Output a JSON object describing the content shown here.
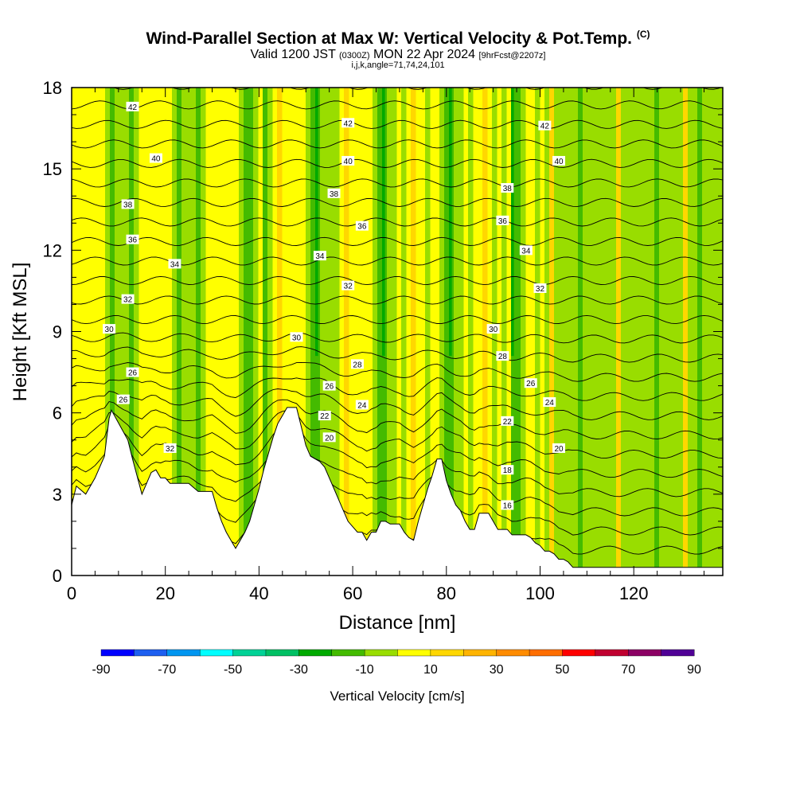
{
  "header": {
    "title": "Wind-Parallel Section at Max W: Vertical Velocity & Pot.Temp.",
    "title_mark": "(C)",
    "valid_prefix": "Valid 1200 JST",
    "valid_utc": "(0300Z)",
    "valid_date": "MON 22 Apr 2024",
    "forecast": "[9hrFcst@2207z]",
    "indices": "i,j,k,angle=71,74,24,101"
  },
  "chart_data": {
    "type": "heatmap",
    "xlabel": "Distance [nm]",
    "ylabel": "Height [Kft MSL]",
    "xlim": [
      0,
      139
    ],
    "ylim": [
      0,
      18
    ],
    "x_ticks": [
      0,
      20,
      40,
      60,
      80,
      100,
      120
    ],
    "y_ticks": [
      0,
      3,
      6,
      9,
      12,
      15,
      18
    ],
    "colorbar": {
      "title": "Vertical Velocity [cm/s]",
      "tick_labels": [
        "-90",
        "-70",
        "-50",
        "-30",
        "-10",
        "10",
        "30",
        "50",
        "70",
        "90"
      ],
      "colors": [
        "#0000ff",
        "#1e5ff0",
        "#0096f0",
        "#00ffff",
        "#00d296",
        "#00c064",
        "#00aa00",
        "#44bb00",
        "#99dd00",
        "#ffff00",
        "#ffd700",
        "#ffb400",
        "#ff8c00",
        "#ff6e00",
        "#ff0000",
        "#c00030",
        "#8c0064",
        "#500096"
      ]
    },
    "terrain_profile": {
      "x": [
        0,
        1,
        3,
        5,
        7,
        8,
        8.5,
        12,
        13,
        15,
        16,
        17,
        18,
        19,
        20,
        21,
        23,
        25,
        27,
        28,
        30,
        31,
        32,
        33,
        34,
        35,
        36,
        37,
        38,
        39,
        40,
        41,
        42,
        43,
        44,
        45,
        46,
        47,
        48,
        49,
        50,
        51,
        52,
        53,
        54,
        55,
        56,
        57,
        58,
        59,
        60,
        61,
        62,
        63,
        64,
        65,
        66,
        67,
        68,
        69,
        70,
        71,
        72,
        73,
        74,
        75,
        76,
        77,
        78,
        79,
        80,
        81,
        82,
        83,
        84,
        85,
        86,
        87,
        88,
        89,
        90,
        91,
        92,
        93,
        94,
        95,
        96,
        97,
        98,
        99,
        100,
        101,
        102,
        103,
        104,
        105,
        106,
        107,
        139
      ],
      "y": [
        2.6,
        3.3,
        3.0,
        3.6,
        4.4,
        5.8,
        6.1,
        5.0,
        4.3,
        3.0,
        3.4,
        3.8,
        3.9,
        3.6,
        3.6,
        3.4,
        3.4,
        3.4,
        3.1,
        3.1,
        3.1,
        2.5,
        2.0,
        1.6,
        1.3,
        1.0,
        1.3,
        1.6,
        2.0,
        2.6,
        3.2,
        3.9,
        4.5,
        5.1,
        5.6,
        5.9,
        6.2,
        6.2,
        6.2,
        5.5,
        4.8,
        4.4,
        4.3,
        4.2,
        4.0,
        3.6,
        3.2,
        2.8,
        2.4,
        2.0,
        1.8,
        1.6,
        1.6,
        1.3,
        1.6,
        1.6,
        2.0,
        2.0,
        1.9,
        1.9,
        1.9,
        1.6,
        1.4,
        1.3,
        2.0,
        2.6,
        3.2,
        3.7,
        4.3,
        4.3,
        3.5,
        3.0,
        2.6,
        2.4,
        2.0,
        1.7,
        1.7,
        2.3,
        2.3,
        2.3,
        2.0,
        1.7,
        1.7,
        1.7,
        1.5,
        1.5,
        1.5,
        1.5,
        1.4,
        1.2,
        1.1,
        0.9,
        0.9,
        0.8,
        0.6,
        0.6,
        0.5,
        0.3,
        0.3
      ]
    },
    "theta_contour_labels": [
      {
        "x": 13,
        "y": 17.3,
        "value": "42"
      },
      {
        "x": 59,
        "y": 16.7,
        "value": "42"
      },
      {
        "x": 101,
        "y": 16.6,
        "value": "42"
      },
      {
        "x": 18,
        "y": 15.4,
        "value": "40"
      },
      {
        "x": 59,
        "y": 15.3,
        "value": "40"
      },
      {
        "x": 104,
        "y": 15.3,
        "value": "40"
      },
      {
        "x": 12,
        "y": 13.7,
        "value": "38"
      },
      {
        "x": 56,
        "y": 14.1,
        "value": "38"
      },
      {
        "x": 93,
        "y": 14.3,
        "value": "38"
      },
      {
        "x": 13,
        "y": 12.4,
        "value": "36"
      },
      {
        "x": 62,
        "y": 12.9,
        "value": "36"
      },
      {
        "x": 92,
        "y": 13.1,
        "value": "36"
      },
      {
        "x": 22,
        "y": 11.5,
        "value": "34"
      },
      {
        "x": 53,
        "y": 11.8,
        "value": "34"
      },
      {
        "x": 97,
        "y": 12.0,
        "value": "34"
      },
      {
        "x": 12,
        "y": 10.2,
        "value": "32"
      },
      {
        "x": 59,
        "y": 10.7,
        "value": "32"
      },
      {
        "x": 100,
        "y": 10.6,
        "value": "32"
      },
      {
        "x": 8,
        "y": 9.1,
        "value": "30"
      },
      {
        "x": 48,
        "y": 8.8,
        "value": "30"
      },
      {
        "x": 90,
        "y": 9.1,
        "value": "30"
      },
      {
        "x": 61,
        "y": 7.8,
        "value": "28"
      },
      {
        "x": 92,
        "y": 8.1,
        "value": "28"
      },
      {
        "x": 13,
        "y": 7.5,
        "value": "26"
      },
      {
        "x": 55,
        "y": 7.0,
        "value": "26"
      },
      {
        "x": 98,
        "y": 7.1,
        "value": "26"
      },
      {
        "x": 62,
        "y": 6.3,
        "value": "24"
      },
      {
        "x": 102,
        "y": 6.4,
        "value": "24"
      },
      {
        "x": 11,
        "y": 6.5,
        "value": "26"
      },
      {
        "x": 54,
        "y": 5.9,
        "value": "22"
      },
      {
        "x": 93,
        "y": 5.7,
        "value": "22"
      },
      {
        "x": 55,
        "y": 5.1,
        "value": "20"
      },
      {
        "x": 104,
        "y": 4.7,
        "value": "20"
      },
      {
        "x": 21,
        "y": 4.7,
        "value": "32"
      },
      {
        "x": 93,
        "y": 3.9,
        "value": "18"
      },
      {
        "x": 93,
        "y": 2.6,
        "value": "16"
      }
    ]
  }
}
